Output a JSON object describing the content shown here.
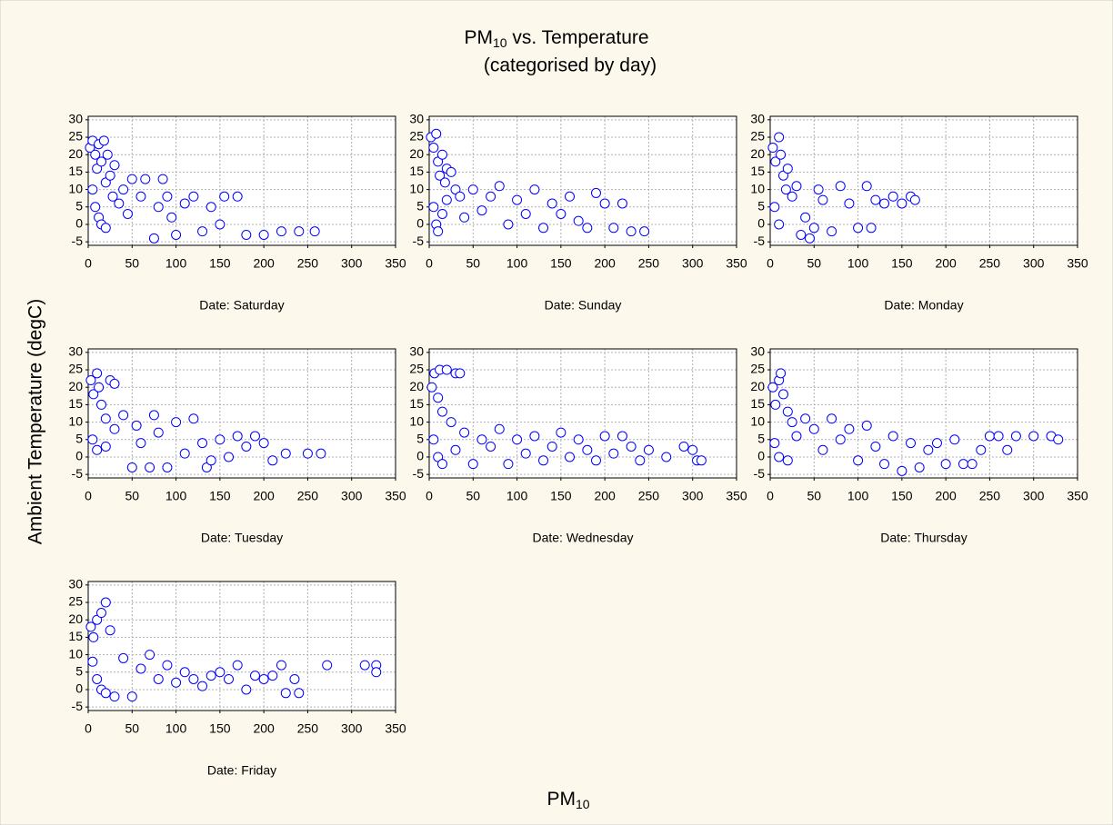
{
  "title": {
    "text": "PM",
    "subscript": "10",
    "rest": " vs. Temperature"
  },
  "subtitle": "(categorised by day)",
  "y_label": "Ambient Temperature (degC)",
  "x_label": {
    "text": "PM",
    "subscript": "10"
  },
  "chart_data": [
    {
      "type": "scatter",
      "title": "Date: Saturday",
      "color": "#0000ff",
      "grid": true,
      "xlim": [
        0,
        350
      ],
      "ylim": [
        -6,
        31
      ],
      "xticks": [
        0,
        50,
        100,
        150,
        200,
        250,
        300,
        350
      ],
      "yticks": [
        -5,
        0,
        5,
        10,
        15,
        20,
        25,
        30
      ],
      "x": [
        2,
        5,
        8,
        10,
        12,
        15,
        18,
        20,
        22,
        25,
        28,
        30,
        5,
        8,
        12,
        15,
        20,
        35,
        40,
        45,
        50,
        60,
        65,
        75,
        80,
        85,
        90,
        95,
        100,
        110,
        120,
        130,
        140,
        150,
        155,
        170,
        180,
        200,
        220,
        240,
        258
      ],
      "values": [
        22,
        24,
        20,
        16,
        23,
        18,
        24,
        12,
        20,
        14,
        8,
        17,
        10,
        5,
        2,
        0,
        -1,
        6,
        10,
        3,
        13,
        8,
        13,
        -4,
        5,
        13,
        8,
        2,
        -3,
        6,
        8,
        -2,
        5,
        0,
        8,
        8,
        -3,
        -3,
        -2,
        -2,
        -2
      ]
    },
    {
      "type": "scatter",
      "title": "Date: Sunday",
      "color": "#0000ff",
      "grid": true,
      "xlim": [
        0,
        350
      ],
      "ylim": [
        -6,
        31
      ],
      "xticks": [
        0,
        50,
        100,
        150,
        200,
        250,
        300,
        350
      ],
      "yticks": [
        -5,
        0,
        5,
        10,
        15,
        20,
        25,
        30
      ],
      "x": [
        2,
        5,
        8,
        10,
        12,
        15,
        18,
        20,
        25,
        30,
        5,
        8,
        10,
        15,
        20,
        35,
        40,
        50,
        60,
        70,
        80,
        90,
        100,
        110,
        120,
        130,
        140,
        150,
        160,
        170,
        180,
        190,
        200,
        210,
        220,
        230,
        245
      ],
      "values": [
        25,
        22,
        26,
        18,
        14,
        20,
        12,
        16,
        15,
        10,
        5,
        0,
        -2,
        3,
        7,
        8,
        2,
        10,
        4,
        8,
        11,
        0,
        7,
        3,
        10,
        -1,
        6,
        3,
        8,
        1,
        -1,
        9,
        6,
        -1,
        6,
        -2,
        -2
      ]
    },
    {
      "type": "scatter",
      "title": "Date: Monday",
      "color": "#0000ff",
      "grid": true,
      "xlim": [
        0,
        350
      ],
      "ylim": [
        -6,
        31
      ],
      "xticks": [
        0,
        50,
        100,
        150,
        200,
        250,
        300,
        350
      ],
      "yticks": [
        -5,
        0,
        5,
        10,
        15,
        20,
        25,
        30
      ],
      "x": [
        3,
        6,
        10,
        12,
        15,
        18,
        20,
        25,
        30,
        5,
        10,
        35,
        40,
        45,
        50,
        55,
        60,
        70,
        80,
        90,
        100,
        110,
        115,
        120,
        130,
        140,
        150,
        160,
        165
      ],
      "values": [
        22,
        18,
        25,
        20,
        14,
        10,
        16,
        8,
        11,
        5,
        0,
        -3,
        2,
        -4,
        -1,
        10,
        7,
        -2,
        11,
        6,
        -1,
        11,
        -1,
        7,
        6,
        8,
        6,
        8,
        7
      ]
    },
    {
      "type": "scatter",
      "title": "Date: Tuesday",
      "color": "#0000ff",
      "grid": true,
      "xlim": [
        0,
        350
      ],
      "ylim": [
        -6,
        31
      ],
      "xticks": [
        0,
        50,
        100,
        150,
        200,
        250,
        300,
        350
      ],
      "yticks": [
        -5,
        0,
        5,
        10,
        15,
        20,
        25,
        30
      ],
      "x": [
        3,
        6,
        10,
        12,
        15,
        20,
        25,
        30,
        5,
        10,
        20,
        30,
        40,
        50,
        55,
        60,
        70,
        75,
        80,
        90,
        100,
        110,
        120,
        130,
        135,
        140,
        150,
        160,
        170,
        180,
        190,
        200,
        210,
        225,
        250,
        265
      ],
      "values": [
        22,
        18,
        24,
        20,
        15,
        11,
        22,
        21,
        5,
        2,
        3,
        8,
        12,
        -3,
        9,
        4,
        -3,
        12,
        7,
        -3,
        10,
        1,
        11,
        4,
        -3,
        -1,
        5,
        0,
        6,
        3,
        6,
        4,
        -1,
        1,
        1,
        1
      ]
    },
    {
      "type": "scatter",
      "title": "Date: Wednesday",
      "color": "#0000ff",
      "grid": true,
      "xlim": [
        0,
        350
      ],
      "ylim": [
        -6,
        31
      ],
      "xticks": [
        0,
        50,
        100,
        150,
        200,
        250,
        300,
        350
      ],
      "yticks": [
        -5,
        0,
        5,
        10,
        15,
        20,
        25,
        30
      ],
      "x": [
        3,
        6,
        10,
        12,
        15,
        20,
        30,
        35,
        5,
        10,
        15,
        25,
        30,
        40,
        50,
        60,
        70,
        80,
        90,
        100,
        110,
        120,
        130,
        140,
        150,
        160,
        170,
        180,
        190,
        200,
        210,
        220,
        230,
        240,
        250,
        270,
        290,
        300,
        305,
        310
      ],
      "values": [
        20,
        24,
        17,
        25,
        13,
        25,
        24,
        24,
        5,
        0,
        -2,
        10,
        2,
        7,
        -2,
        5,
        3,
        8,
        -2,
        5,
        1,
        6,
        -1,
        3,
        7,
        0,
        5,
        2,
        -1,
        6,
        1,
        6,
        3,
        -1,
        2,
        0,
        3,
        2,
        -1,
        -1
      ]
    },
    {
      "type": "scatter",
      "title": "Date: Thursday",
      "color": "#0000ff",
      "grid": true,
      "xlim": [
        0,
        350
      ],
      "ylim": [
        -6,
        31
      ],
      "xticks": [
        0,
        50,
        100,
        150,
        200,
        250,
        300,
        350
      ],
      "yticks": [
        -5,
        0,
        5,
        10,
        15,
        20,
        25,
        30
      ],
      "x": [
        3,
        6,
        10,
        12,
        15,
        20,
        25,
        5,
        10,
        20,
        30,
        40,
        50,
        60,
        70,
        80,
        90,
        100,
        110,
        120,
        130,
        140,
        150,
        160,
        170,
        180,
        190,
        200,
        210,
        220,
        230,
        240,
        250,
        260,
        270,
        280,
        300,
        320,
        328
      ],
      "values": [
        20,
        15,
        22,
        24,
        18,
        13,
        10,
        4,
        0,
        -1,
        6,
        11,
        8,
        2,
        11,
        5,
        8,
        -1,
        9,
        3,
        -2,
        6,
        -4,
        4,
        -3,
        2,
        4,
        -2,
        5,
        -2,
        -2,
        2,
        6,
        6,
        2,
        6,
        6,
        6,
        5
      ]
    },
    {
      "type": "scatter",
      "title": "Date: Friday",
      "color": "#0000ff",
      "grid": true,
      "xlim": [
        0,
        350
      ],
      "ylim": [
        -6,
        31
      ],
      "xticks": [
        0,
        50,
        100,
        150,
        200,
        250,
        300,
        350
      ],
      "yticks": [
        -5,
        0,
        5,
        10,
        15,
        20,
        25,
        30
      ],
      "x": [
        3,
        6,
        10,
        15,
        20,
        25,
        5,
        10,
        15,
        20,
        30,
        40,
        50,
        60,
        70,
        80,
        90,
        100,
        110,
        120,
        130,
        140,
        150,
        160,
        170,
        180,
        190,
        200,
        210,
        220,
        225,
        235,
        240,
        272,
        315,
        328,
        328
      ],
      "values": [
        18,
        15,
        20,
        22,
        25,
        17,
        8,
        3,
        0,
        -1,
        -2,
        9,
        -2,
        6,
        10,
        3,
        7,
        2,
        5,
        3,
        1,
        4,
        5,
        3,
        7,
        0,
        4,
        3,
        4,
        7,
        -1,
        3,
        -1,
        7,
        7,
        7,
        5
      ]
    }
  ]
}
